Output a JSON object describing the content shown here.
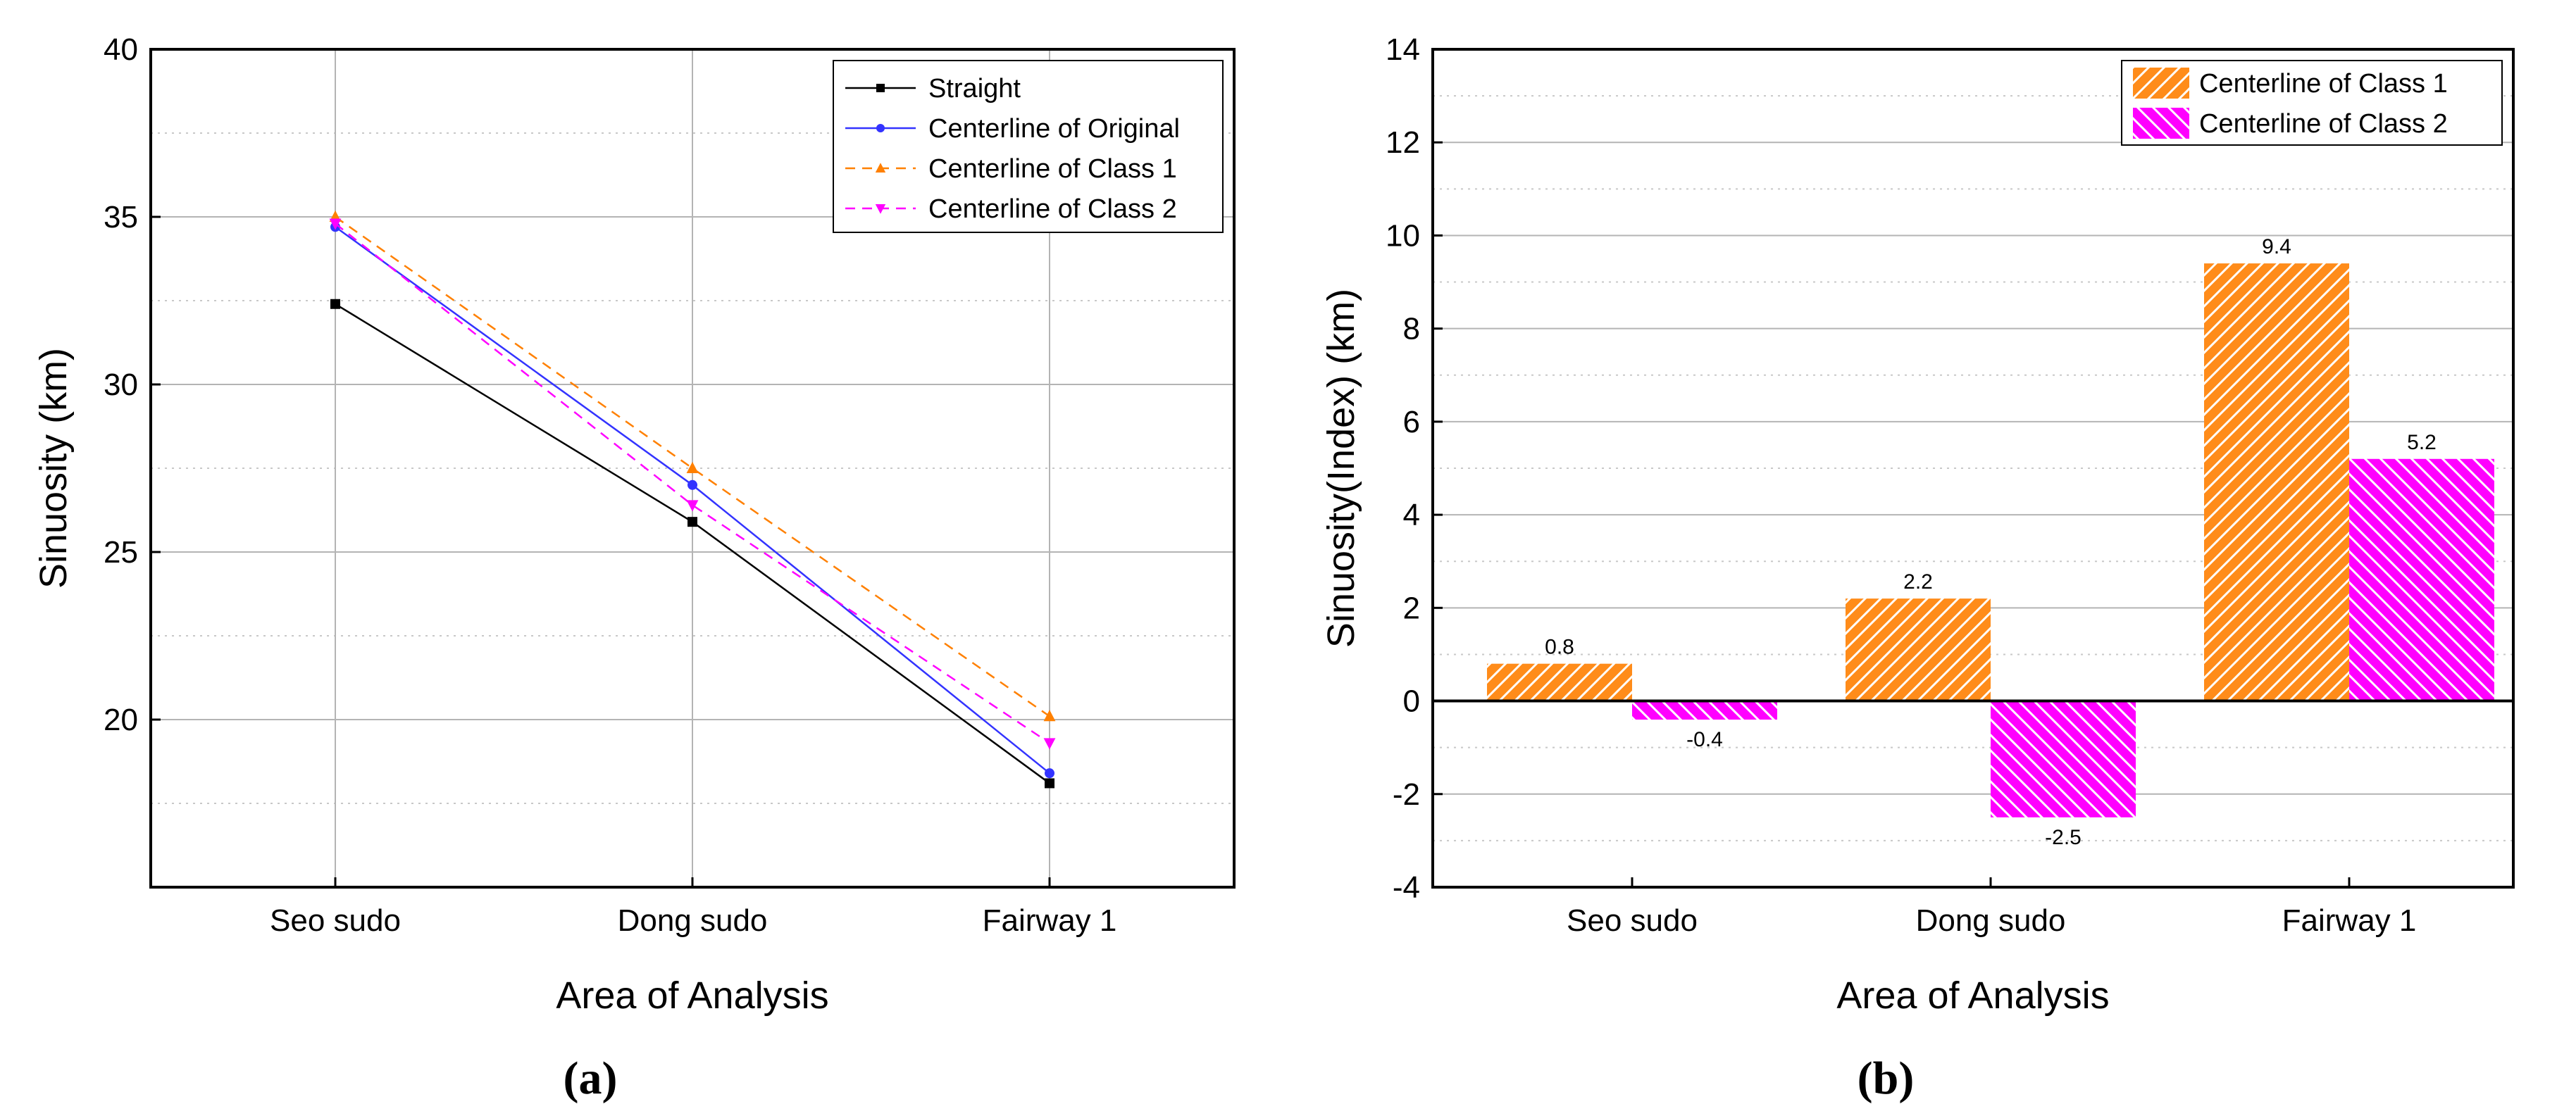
{
  "chart_data": [
    {
      "type": "line",
      "panel_label": "(a)",
      "categories": [
        "Seo sudo",
        "Dong sudo",
        "Fairway 1"
      ],
      "xlabel": "Area of Analysis",
      "ylabel": "Sinuosity (km)",
      "ylim": [
        15,
        40
      ],
      "yticks": [
        "20",
        "25",
        "30",
        "35",
        "40"
      ],
      "legend_position": "top-right",
      "grid": true,
      "series": [
        {
          "name": "Straight",
          "values": [
            32.4,
            25.9,
            18.1
          ],
          "color": "#000000",
          "dash": "solid",
          "marker": "square"
        },
        {
          "name": "Centerline of Original",
          "values": [
            34.7,
            27.0,
            18.4
          ],
          "color": "#3333ff",
          "dash": "solid",
          "marker": "circle"
        },
        {
          "name": "Centerline of Class 1",
          "values": [
            35.0,
            27.5,
            20.1
          ],
          "color": "#ff8000",
          "dash": "dashed",
          "marker": "triangle-up"
        },
        {
          "name": "Centerline of Class 2",
          "values": [
            34.8,
            26.4,
            19.3
          ],
          "color": "#ff00ff",
          "dash": "dashed",
          "marker": "triangle-down"
        }
      ]
    },
    {
      "type": "bar",
      "panel_label": "(b)",
      "categories": [
        "Seo sudo",
        "Dong sudo",
        "Fairway 1"
      ],
      "xlabel": "Area of Analysis",
      "ylabel": "Sinuosity(Index) (km)",
      "ylim": [
        -4,
        14
      ],
      "yticks": [
        "-4",
        "-2",
        "0",
        "2",
        "4",
        "6",
        "8",
        "10",
        "12",
        "14"
      ],
      "legend_position": "top-right",
      "grid": true,
      "series": [
        {
          "name": "Centerline of Class 1",
          "values": [
            0.8,
            2.2,
            9.4
          ],
          "labels": [
            "0.8",
            "2.2",
            "9.4"
          ],
          "color": "#ff8c1a",
          "hatch": "forward"
        },
        {
          "name": "Centerline of Class 2",
          "values": [
            -0.4,
            -2.5,
            5.2
          ],
          "labels": [
            "-0.4",
            "-2.5",
            "5.2"
          ],
          "color": "#ff00ff",
          "hatch": "backward"
        }
      ]
    }
  ]
}
